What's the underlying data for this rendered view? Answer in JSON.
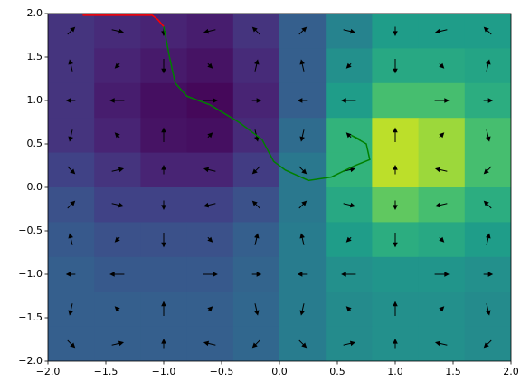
{
  "chart_data": {
    "type": "heatmap",
    "xlim": [
      -2,
      2
    ],
    "ylim": [
      -2,
      2
    ],
    "xticks": [
      {
        "value": -2,
        "label": "−2.0"
      },
      {
        "value": -1.5,
        "label": "−1.5"
      },
      {
        "value": -1,
        "label": "−1.0"
      },
      {
        "value": -0.5,
        "label": "−0.5"
      },
      {
        "value": 0,
        "label": "0.0"
      },
      {
        "value": 0.5,
        "label": "0.5"
      },
      {
        "value": 1,
        "label": "1.0"
      },
      {
        "value": 1.5,
        "label": "1.5"
      },
      {
        "value": 2,
        "label": "2.0"
      }
    ],
    "yticks": [
      {
        "value": -2,
        "label": "−2.0"
      },
      {
        "value": -1.5,
        "label": "−1.5"
      },
      {
        "value": -1,
        "label": "−1.0"
      },
      {
        "value": -0.5,
        "label": "−0.5"
      },
      {
        "value": 0,
        "label": "0.0"
      },
      {
        "value": 0.5,
        "label": "0.5"
      },
      {
        "value": 1,
        "label": "1.0"
      },
      {
        "value": 1.5,
        "label": "1.5"
      },
      {
        "value": 2,
        "label": "2.0"
      }
    ],
    "x": [
      -1.8,
      -1.4,
      -1.0,
      -0.6,
      -0.2,
      0.2,
      0.6,
      1.0,
      1.4,
      1.8
    ],
    "y": [
      1.8,
      1.4,
      1.0,
      0.6,
      0.2,
      -0.2,
      -0.6,
      -1.0,
      -1.4,
      -1.8
    ],
    "clim": [
      0,
      1
    ],
    "colormap": [
      "#440154",
      "#482878",
      "#3e4989",
      "#31688e",
      "#26828e",
      "#1f9e89",
      "#35b779",
      "#6ece58",
      "#b5de2b",
      "#fde725"
    ],
    "z": [
      [
        0.15,
        0.12,
        0.1,
        0.08,
        0.15,
        0.3,
        0.45,
        0.55,
        0.55,
        0.55
      ],
      [
        0.15,
        0.1,
        0.07,
        0.05,
        0.12,
        0.3,
        0.5,
        0.6,
        0.6,
        0.58
      ],
      [
        0.15,
        0.08,
        0.04,
        0.02,
        0.1,
        0.3,
        0.55,
        0.7,
        0.7,
        0.62
      ],
      [
        0.15,
        0.1,
        0.05,
        0.04,
        0.12,
        0.35,
        0.65,
        0.9,
        0.85,
        0.7
      ],
      [
        0.2,
        0.15,
        0.1,
        0.1,
        0.18,
        0.4,
        0.65,
        0.9,
        0.85,
        0.7
      ],
      [
        0.25,
        0.2,
        0.2,
        0.2,
        0.25,
        0.4,
        0.6,
        0.75,
        0.7,
        0.62
      ],
      [
        0.28,
        0.25,
        0.25,
        0.25,
        0.3,
        0.42,
        0.55,
        0.62,
        0.6,
        0.55
      ],
      [
        0.3,
        0.28,
        0.28,
        0.28,
        0.32,
        0.42,
        0.5,
        0.52,
        0.52,
        0.5
      ],
      [
        0.3,
        0.3,
        0.3,
        0.3,
        0.33,
        0.42,
        0.48,
        0.5,
        0.5,
        0.48
      ],
      [
        0.3,
        0.3,
        0.3,
        0.3,
        0.33,
        0.42,
        0.48,
        0.5,
        0.5,
        0.48
      ]
    ],
    "quiver": {
      "color": "#000000",
      "u": [
        [
          0.48,
          0.77,
          0,
          -0.77,
          -0.48,
          0.48,
          0.77,
          0,
          -0.77,
          -0.48
        ],
        [
          -0.18,
          -0.29,
          0,
          0.29,
          0.18,
          -0.18,
          -0.29,
          0,
          0.29,
          0.18
        ],
        [
          -0.59,
          -0.95,
          0,
          0.95,
          0.59,
          -0.59,
          -0.95,
          0,
          0.95,
          0.59
        ],
        [
          -0.18,
          -0.29,
          0,
          0.29,
          0.18,
          -0.18,
          -0.29,
          0,
          0.29,
          0.18
        ],
        [
          0.48,
          0.77,
          0,
          -0.77,
          -0.48,
          0.48,
          0.77,
          0,
          -0.77,
          -0.48
        ],
        [
          0.48,
          0.77,
          0,
          -0.77,
          -0.48,
          0.48,
          0.77,
          0,
          -0.77,
          -0.48
        ],
        [
          -0.18,
          -0.29,
          0,
          0.29,
          0.18,
          -0.18,
          -0.29,
          0,
          0.29,
          0.18
        ],
        [
          -0.59,
          -0.95,
          0,
          0.95,
          0.59,
          -0.59,
          -0.95,
          0,
          0.95,
          0.59
        ],
        [
          -0.18,
          -0.29,
          0,
          0.29,
          0.18,
          -0.18,
          -0.29,
          0,
          0.29,
          0.18
        ],
        [
          0.48,
          0.77,
          0,
          -0.77,
          -0.48,
          0.48,
          0.77,
          0,
          -0.77,
          -0.48
        ]
      ],
      "v": [
        [
          0.48,
          -0.18,
          -0.59,
          -0.18,
          0.48,
          0.48,
          -0.18,
          -0.59,
          -0.18,
          0.48
        ],
        [
          0.77,
          -0.29,
          -0.95,
          -0.29,
          0.77,
          0.77,
          -0.29,
          -0.95,
          -0.29,
          0.77
        ],
        [
          0,
          0,
          0,
          0,
          0,
          0,
          0,
          0,
          0,
          0
        ],
        [
          -0.77,
          0.29,
          0.95,
          0.29,
          -0.77,
          -0.77,
          0.29,
          0.95,
          0.29,
          -0.77
        ],
        [
          -0.48,
          0.18,
          0.59,
          0.18,
          -0.48,
          -0.48,
          0.18,
          0.59,
          0.18,
          -0.48
        ],
        [
          0.48,
          -0.18,
          -0.59,
          -0.18,
          0.48,
          0.48,
          -0.18,
          -0.59,
          -0.18,
          0.48
        ],
        [
          0.77,
          -0.29,
          -0.95,
          -0.29,
          0.77,
          0.77,
          -0.29,
          -0.95,
          -0.29,
          0.77
        ],
        [
          0,
          0,
          0,
          0,
          0,
          0,
          0,
          0,
          0,
          0
        ],
        [
          -0.77,
          0.29,
          0.95,
          0.29,
          -0.77,
          -0.77,
          0.29,
          0.95,
          0.29,
          -0.77
        ],
        [
          -0.48,
          0.18,
          0.59,
          0.18,
          -0.48,
          -0.48,
          0.18,
          0.59,
          0.18,
          -0.48
        ]
      ]
    },
    "series": [
      {
        "color": "#ff0000",
        "x": [
          -1.7,
          -1.4,
          -1.1,
          -1.05,
          -1.0
        ],
        "y": [
          1.98,
          1.98,
          1.98,
          1.93,
          1.85
        ]
      },
      {
        "color": "#008000",
        "x": [
          -1.0,
          -0.95,
          -0.9,
          -0.8,
          -0.6,
          -0.35,
          -0.15,
          -0.05,
          0.05,
          0.25,
          0.45,
          0.65,
          0.78,
          0.75,
          0.62,
          0.7
        ],
        "y": [
          1.85,
          1.5,
          1.2,
          1.05,
          0.95,
          0.75,
          0.55,
          0.3,
          0.2,
          0.08,
          0.12,
          0.25,
          0.32,
          0.5,
          0.6,
          0.55
        ]
      }
    ]
  }
}
